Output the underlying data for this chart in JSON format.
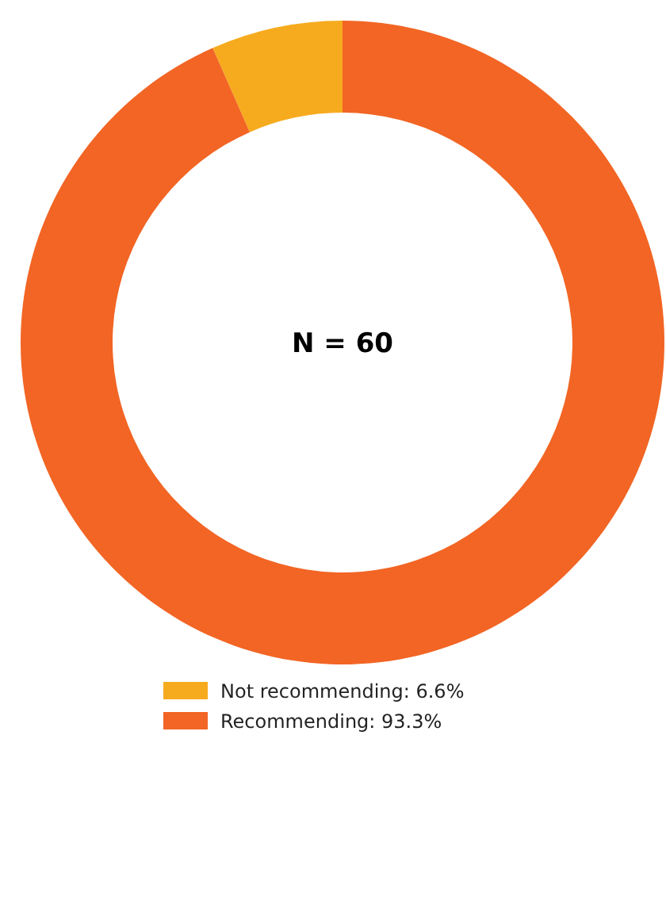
{
  "chart_data": {
    "type": "donut",
    "categories": [
      "Not recommending: 6.6%",
      "Recommending: 93.3%"
    ],
    "values": [
      6.6,
      93.3
    ],
    "colors": [
      "#f6ab1e",
      "#f26524"
    ],
    "annotations": [
      "N = 60"
    ],
    "legend": "bottom"
  }
}
